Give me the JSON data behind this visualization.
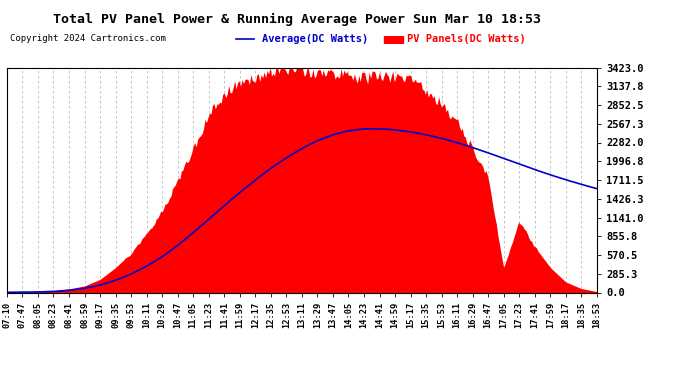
{
  "title": "Total PV Panel Power & Running Average Power Sun Mar 10 18:53",
  "copyright": "Copyright 2024 Cartronics.com",
  "legend_average": "Average(DC Watts)",
  "legend_panels": "PV Panels(DC Watts)",
  "yticks": [
    0.0,
    285.3,
    570.5,
    855.8,
    1141.0,
    1426.3,
    1711.5,
    1996.8,
    2282.0,
    2567.3,
    2852.5,
    3137.8,
    3423.0
  ],
  "ymax": 3423.0,
  "ymin": 0.0,
  "bg_color": "#ffffff",
  "grid_color": "#bbbbbb",
  "fill_color": "#ff0000",
  "avg_line_color": "#0000cc",
  "xtick_labels": [
    "07:10",
    "07:47",
    "08:05",
    "08:23",
    "08:41",
    "08:59",
    "09:17",
    "09:35",
    "09:53",
    "10:11",
    "10:29",
    "10:47",
    "11:05",
    "11:23",
    "11:41",
    "11:59",
    "12:17",
    "12:35",
    "12:53",
    "13:11",
    "13:29",
    "13:47",
    "14:05",
    "14:23",
    "14:41",
    "14:59",
    "15:17",
    "15:35",
    "15:53",
    "16:11",
    "16:29",
    "16:47",
    "17:05",
    "17:23",
    "17:41",
    "17:59",
    "18:17",
    "18:35",
    "18:53"
  ],
  "pv_data": [
    5,
    8,
    12,
    25,
    55,
    100,
    200,
    380,
    600,
    900,
    1250,
    1700,
    2200,
    2700,
    3050,
    3200,
    3300,
    3380,
    3423,
    3400,
    3380,
    3350,
    3320,
    3280,
    3310,
    3290,
    3250,
    3100,
    2900,
    2600,
    2200,
    1750,
    380,
    1100,
    700,
    380,
    160,
    60,
    15
  ],
  "avg_data": [
    3,
    5,
    8,
    16,
    33,
    63,
    112,
    185,
    280,
    400,
    545,
    715,
    910,
    1115,
    1320,
    1520,
    1710,
    1890,
    2050,
    2190,
    2310,
    2400,
    2460,
    2490,
    2490,
    2475,
    2445,
    2400,
    2345,
    2280,
    2205,
    2125,
    2040,
    1955,
    1870,
    1790,
    1715,
    1645,
    1580
  ]
}
